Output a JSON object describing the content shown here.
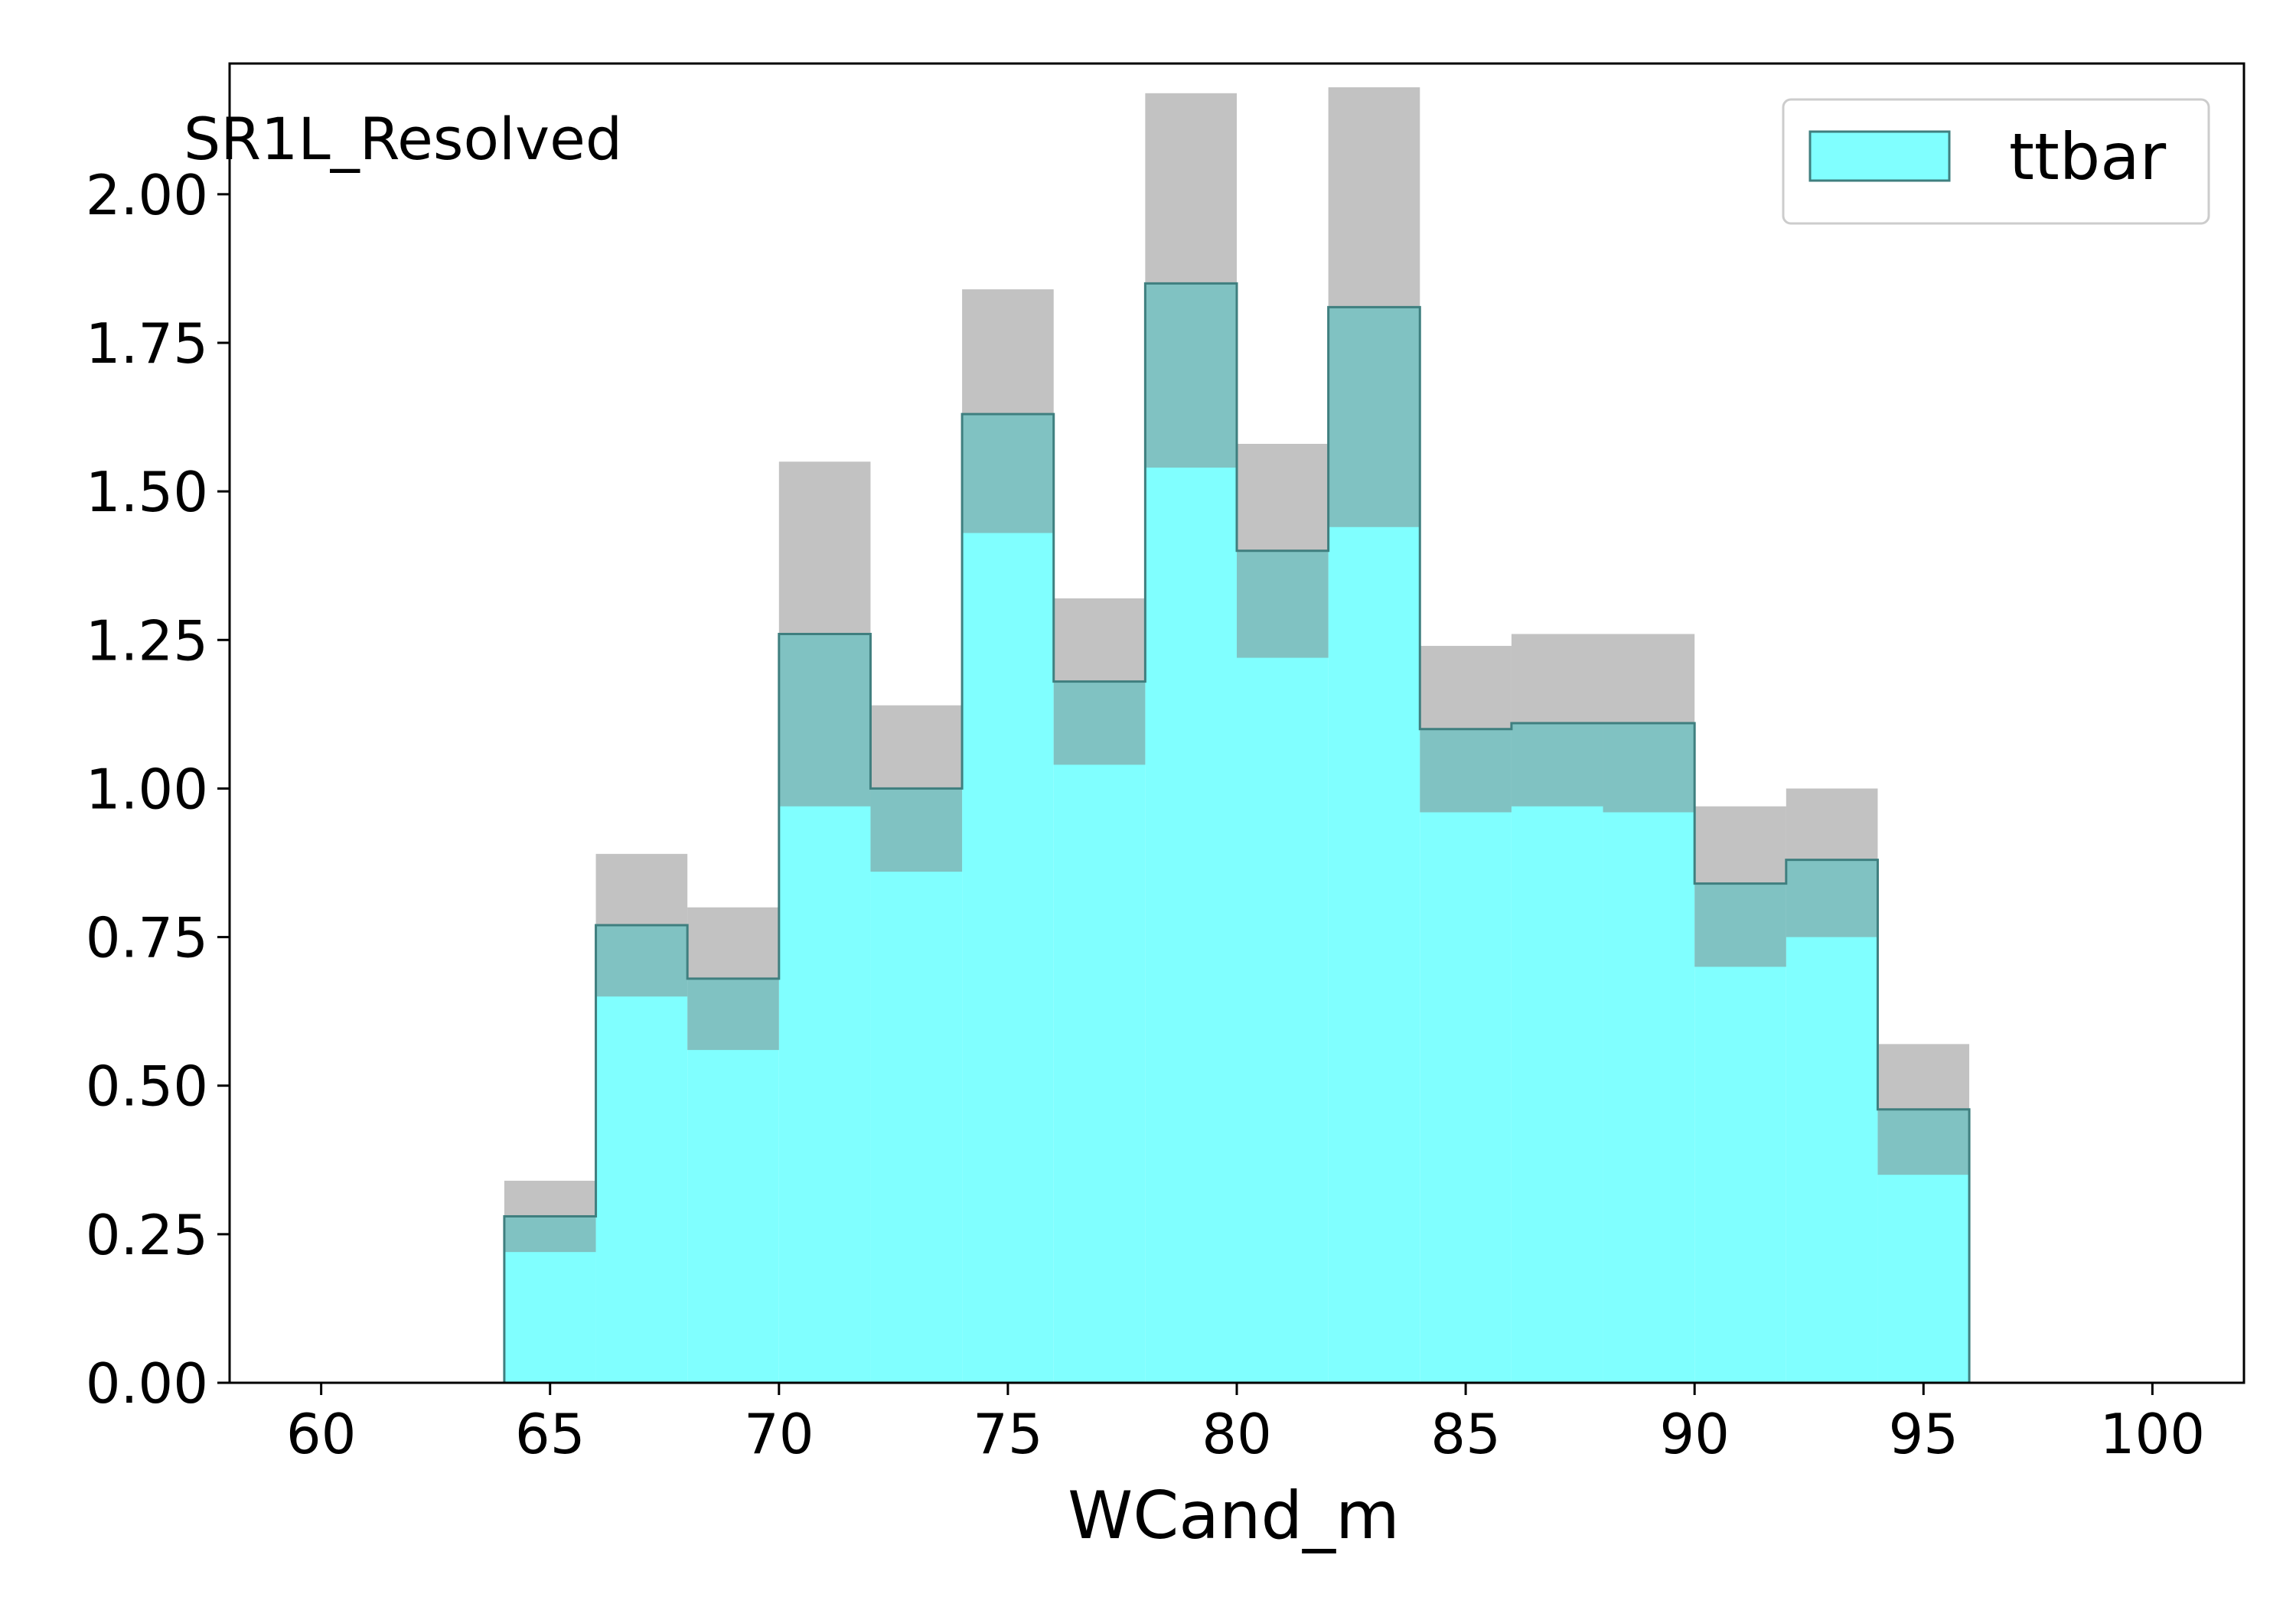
{
  "chart_data": {
    "type": "histogram",
    "region_label": "SR1L_Resolved",
    "xlabel": "WCand_m",
    "ylabel": "",
    "xlim": [
      58,
      102
    ],
    "ylim": [
      0,
      2.22
    ],
    "x_ticks": [
      "60",
      "65",
      "70",
      "75",
      "80",
      "85",
      "90",
      "95",
      "100"
    ],
    "y_ticks": [
      "0.00",
      "0.25",
      "0.50",
      "0.75",
      "1.00",
      "1.25",
      "1.50",
      "1.75",
      "2.00"
    ],
    "legend": {
      "label": "ttbar",
      "position": "top-right"
    },
    "bin_edges": [
      64,
      66,
      68,
      70,
      72,
      74,
      76,
      78,
      80,
      82,
      84,
      86,
      88,
      90,
      92,
      94,
      96
    ],
    "series": [
      {
        "name": "ttbar",
        "values": [
          0.28,
          0.77,
          0.68,
          1.26,
          1.0,
          1.63,
          1.18,
          1.85,
          1.4,
          1.81,
          1.1,
          1.11,
          1.11,
          0.84,
          0.88,
          0.46
        ]
      }
    ],
    "uncertainty": {
      "low": [
        0.22,
        0.65,
        0.56,
        0.97,
        0.86,
        1.43,
        1.04,
        1.54,
        1.22,
        1.44,
        0.96,
        0.97,
        0.96,
        0.7,
        0.75,
        0.35
      ],
      "high": [
        0.34,
        0.89,
        0.8,
        1.55,
        1.14,
        1.84,
        1.32,
        2.17,
        1.58,
        2.18,
        1.24,
        1.26,
        1.26,
        0.97,
        1.0,
        0.57
      ]
    },
    "colors": {
      "fill": "#80ffff",
      "edge": "#3f7f7f",
      "band": "#808080"
    }
  }
}
